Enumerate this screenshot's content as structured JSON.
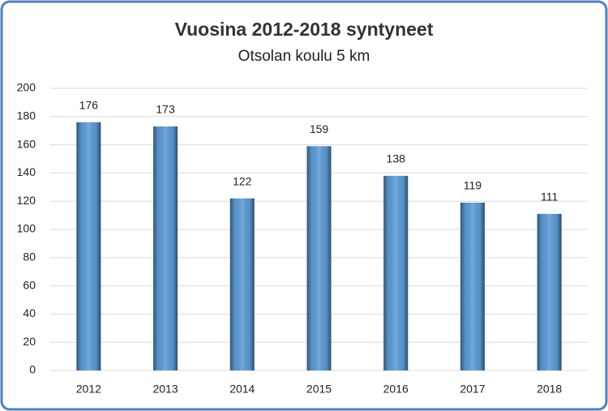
{
  "chart_data": {
    "type": "bar",
    "title": "Vuosina 2012-2018 syntyneet",
    "subtitle": "Otsolan koulu 5 km",
    "categories": [
      "2012",
      "2013",
      "2014",
      "2015",
      "2016",
      "2017",
      "2018"
    ],
    "values": [
      176,
      173,
      122,
      159,
      138,
      119,
      111
    ],
    "color": "#5b9bd5",
    "ylim": [
      0,
      200
    ],
    "yticks": [
      0,
      20,
      40,
      60,
      80,
      100,
      120,
      140,
      160,
      180,
      200
    ],
    "grid": true
  }
}
